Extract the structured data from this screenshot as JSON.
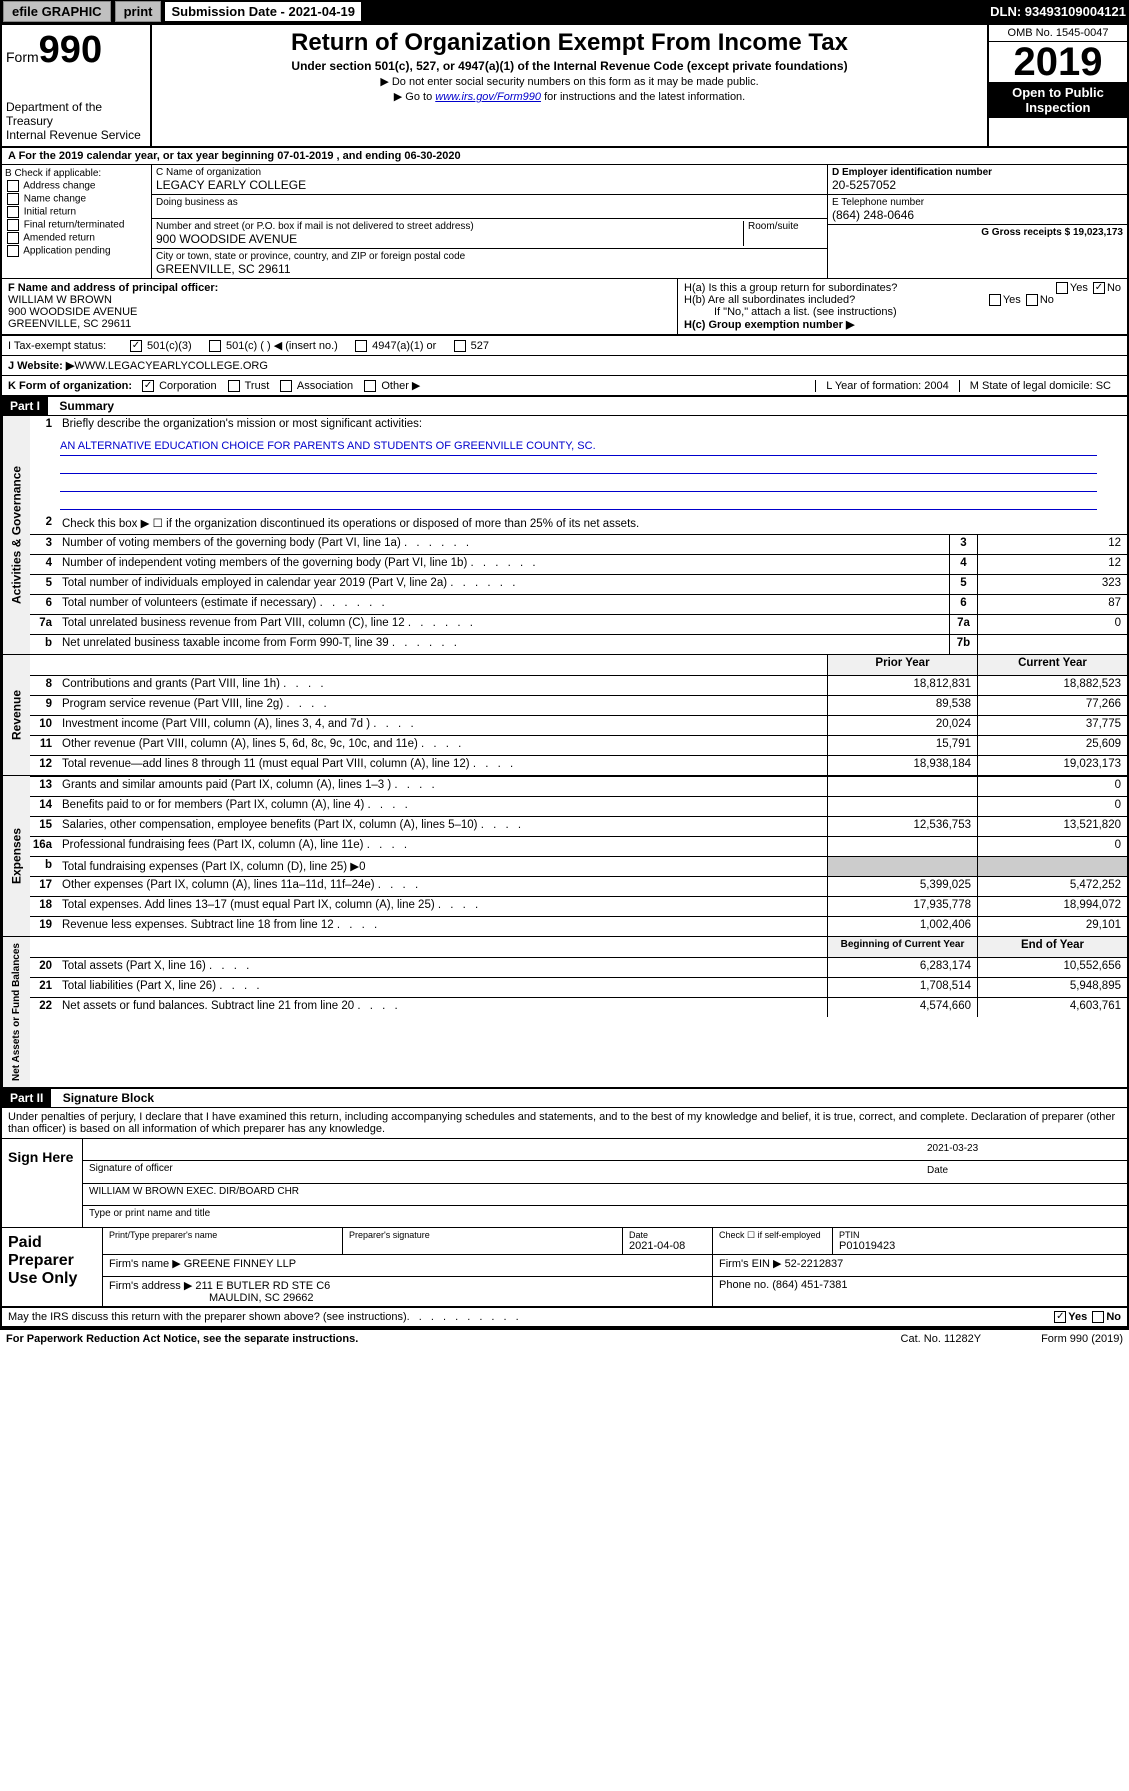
{
  "topbar": {
    "efile": "efile GRAPHIC",
    "print": "print",
    "sub_label": "Submission Date - 2021-04-19",
    "dln": "DLN: 93493109004121"
  },
  "header": {
    "form_prefix": "Form",
    "form_number": "990",
    "dept1": "Department of the Treasury",
    "dept2": "Internal Revenue Service",
    "title": "Return of Organization Exempt From Income Tax",
    "sub": "Under section 501(c), 527, or 4947(a)(1) of the Internal Revenue Code (except private foundations)",
    "note1": "▶ Do not enter social security numbers on this form as it may be made public.",
    "note2_pre": "▶ Go to ",
    "note2_link": "www.irs.gov/Form990",
    "note2_post": " for instructions and the latest information.",
    "omb": "OMB No. 1545-0047",
    "year": "2019",
    "open1": "Open to Public",
    "open2": "Inspection"
  },
  "row_a": "A For the 2019 calendar year, or tax year beginning 07-01-2019    , and ending 06-30-2020",
  "section_b": {
    "title": "B Check if applicable:",
    "opts": [
      "Address change",
      "Name change",
      "Initial return",
      "Final return/terminated",
      "Amended return",
      "Application pending"
    ]
  },
  "section_c": {
    "name_label": "C Name of organization",
    "name": "LEGACY EARLY COLLEGE",
    "dba_label": "Doing business as",
    "addr_label": "Number and street (or P.O. box if mail is not delivered to street address)",
    "room_label": "Room/suite",
    "addr": "900 WOODSIDE AVENUE",
    "city_label": "City or town, state or province, country, and ZIP or foreign postal code",
    "city": "GREENVILLE, SC  29611"
  },
  "section_de": {
    "d_label": "D Employer identification number",
    "d_val": "20-5257052",
    "e_label": "E Telephone number",
    "e_val": "(864) 248-0646",
    "g_label": "G Gross receipts $ 19,023,173"
  },
  "section_f": {
    "label": "F  Name and address of principal officer:",
    "name": "WILLIAM W BROWN",
    "addr1": "900 WOODSIDE AVENUE",
    "addr2": "GREENVILLE, SC  29611"
  },
  "section_h": {
    "ha": "H(a)  Is this a group return for subordinates?",
    "hb": "H(b)  Are all subordinates included?",
    "hb_note": "If \"No,\" attach a list. (see instructions)",
    "hc": "H(c)  Group exemption number ▶",
    "yes": "Yes",
    "no": "No"
  },
  "row_i": {
    "label": "I    Tax-exempt status:",
    "opts": [
      "501(c)(3)",
      "501(c) (   ) ◀ (insert no.)",
      "4947(a)(1) or",
      "527"
    ]
  },
  "row_j": {
    "label": "J   Website: ▶",
    "val": " WWW.LEGACYEARLYCOLLEGE.ORG"
  },
  "row_k": {
    "label": "K Form of organization:",
    "opts": [
      "Corporation",
      "Trust",
      "Association",
      "Other ▶"
    ],
    "l": "L Year of formation: 2004",
    "m": "M State of legal domicile: SC"
  },
  "part1": {
    "hdr": "Part I",
    "title": "Summary",
    "q1_label": "Briefly describe the organization's mission or most significant activities:",
    "q1_val": "AN ALTERNATIVE EDUCATION CHOICE FOR PARENTS AND STUDENTS OF GREENVILLE COUNTY, SC.",
    "q2": "Check this box ▶ ☐  if the organization discontinued its operations or disposed of more than 25% of its net assets.",
    "lines_gov": [
      {
        "n": "3",
        "label": "Number of voting members of the governing body (Part VI, line 1a)",
        "box": "3",
        "val": "12"
      },
      {
        "n": "4",
        "label": "Number of independent voting members of the governing body (Part VI, line 1b)",
        "box": "4",
        "val": "12"
      },
      {
        "n": "5",
        "label": "Total number of individuals employed in calendar year 2019 (Part V, line 2a)",
        "box": "5",
        "val": "323"
      },
      {
        "n": "6",
        "label": "Total number of volunteers (estimate if necessary)",
        "box": "6",
        "val": "87"
      },
      {
        "n": "7a",
        "label": "Total unrelated business revenue from Part VIII, column (C), line 12",
        "box": "7a",
        "val": "0"
      },
      {
        "n": "b",
        "label": "Net unrelated business taxable income from Form 990-T, line 39",
        "box": "7b",
        "val": ""
      }
    ],
    "col_head_prior": "Prior Year",
    "col_head_current": "Current Year",
    "lines_rev": [
      {
        "n": "8",
        "label": "Contributions and grants (Part VIII, line 1h)",
        "p": "18,812,831",
        "c": "18,882,523"
      },
      {
        "n": "9",
        "label": "Program service revenue (Part VIII, line 2g)",
        "p": "89,538",
        "c": "77,266"
      },
      {
        "n": "10",
        "label": "Investment income (Part VIII, column (A), lines 3, 4, and 7d )",
        "p": "20,024",
        "c": "37,775"
      },
      {
        "n": "11",
        "label": "Other revenue (Part VIII, column (A), lines 5, 6d, 8c, 9c, 10c, and 11e)",
        "p": "15,791",
        "c": "25,609"
      },
      {
        "n": "12",
        "label": "Total revenue—add lines 8 through 11 (must equal Part VIII, column (A), line 12)",
        "p": "18,938,184",
        "c": "19,023,173"
      }
    ],
    "lines_exp": [
      {
        "n": "13",
        "label": "Grants and similar amounts paid (Part IX, column (A), lines 1–3 )",
        "p": "",
        "c": "0"
      },
      {
        "n": "14",
        "label": "Benefits paid to or for members (Part IX, column (A), line 4)",
        "p": "",
        "c": "0"
      },
      {
        "n": "15",
        "label": "Salaries, other compensation, employee benefits (Part IX, column (A), lines 5–10)",
        "p": "12,536,753",
        "c": "13,521,820"
      },
      {
        "n": "16a",
        "label": "Professional fundraising fees (Part IX, column (A), line 11e)",
        "p": "",
        "c": "0"
      },
      {
        "n": "b",
        "label": "Total fundraising expenses (Part IX, column (D), line 25) ▶0",
        "p": "—",
        "c": "—"
      },
      {
        "n": "17",
        "label": "Other expenses (Part IX, column (A), lines 11a–11d, 11f–24e)",
        "p": "5,399,025",
        "c": "5,472,252"
      },
      {
        "n": "18",
        "label": "Total expenses. Add lines 13–17 (must equal Part IX, column (A), line 25)",
        "p": "17,935,778",
        "c": "18,994,072"
      },
      {
        "n": "19",
        "label": "Revenue less expenses. Subtract line 18 from line 12",
        "p": "1,002,406",
        "c": "29,101"
      }
    ],
    "col_head_begin": "Beginning of Current Year",
    "col_head_end": "End of Year",
    "lines_net": [
      {
        "n": "20",
        "label": "Total assets (Part X, line 16)",
        "p": "6,283,174",
        "c": "10,552,656"
      },
      {
        "n": "21",
        "label": "Total liabilities (Part X, line 26)",
        "p": "1,708,514",
        "c": "5,948,895"
      },
      {
        "n": "22",
        "label": "Net assets or fund balances. Subtract line 21 from line 20",
        "p": "4,574,660",
        "c": "4,603,761"
      }
    ],
    "vtab_gov": "Activities & Governance",
    "vtab_rev": "Revenue",
    "vtab_exp": "Expenses",
    "vtab_net": "Net Assets or Fund Balances"
  },
  "part2": {
    "hdr": "Part II",
    "title": "Signature Block",
    "perjury": "Under penalties of perjury, I declare that I have examined this return, including accompanying schedules and statements, and to the best of my knowledge and belief, it is true, correct, and complete. Declaration of preparer (other than officer) is based on all information of which preparer has any knowledge.",
    "sign_here": "Sign Here",
    "sig_date": "2021-03-23",
    "sig_of_officer": "Signature of officer",
    "date_label": "Date",
    "officer_name": "WILLIAM W BROWN  EXEC. DIR/BOARD CHR",
    "type_name": "Type or print name and title",
    "paid": "Paid Preparer Use Only",
    "prep_name_label": "Print/Type preparer's name",
    "prep_sig_label": "Preparer's signature",
    "prep_date": "2021-04-08",
    "check_self": "Check ☐ if self-employed",
    "ptin_label": "PTIN",
    "ptin": "P01019423",
    "firm_name_label": "Firm's name    ▶",
    "firm_name": "GREENE FINNEY LLP",
    "firm_ein_label": "Firm's EIN ▶",
    "firm_ein": "52-2212837",
    "firm_addr_label": "Firm's address ▶",
    "firm_addr1": "211 E BUTLER RD STE C6",
    "firm_addr2": "MAULDIN, SC  29662",
    "phone_label": "Phone no.",
    "phone": "(864) 451-7381"
  },
  "discuss": {
    "q": "May the IRS discuss this return with the preparer shown above? (see instructions)",
    "yes": "Yes",
    "no": "No"
  },
  "footer": {
    "left": "For Paperwork Reduction Act Notice, see the separate instructions.",
    "mid": "Cat. No. 11282Y",
    "right": "Form 990 (2019)"
  }
}
